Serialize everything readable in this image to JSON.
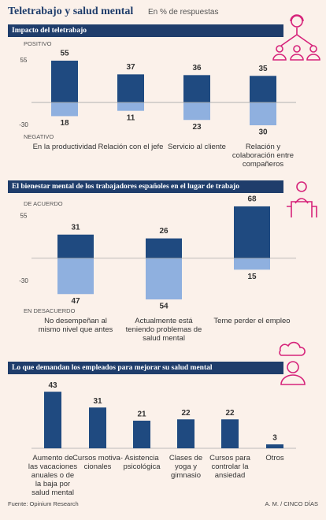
{
  "title": "Teletrabajo y salud mental",
  "subtitle": "En % de respuestas",
  "source": "Fuente: Opinium Research",
  "credit": "A. M. / CINCO DÍAS",
  "chart_data": [
    {
      "type": "bar",
      "title": "Impacto del teletrabajo",
      "categories": [
        "En la productividad",
        "Relación con el jefe",
        "Servicio al cliente",
        "Relación y colaboración entre compañeros"
      ],
      "series": [
        {
          "name": "POSITIVO",
          "color": "#1f4a80",
          "values": [
            55,
            37,
            36,
            35
          ]
        },
        {
          "name": "NEGATIVO",
          "color": "#8fb0df",
          "values": [
            -18,
            -11,
            -23,
            -30
          ],
          "value_labels": [
            "18",
            "11",
            "23",
            "30"
          ]
        }
      ],
      "ylim": [
        -30,
        55
      ],
      "yticks": [
        -30,
        55
      ]
    },
    {
      "type": "bar",
      "title": "El bienestar mental de los trabajadores españoles en el lugar de trabajo",
      "categories": [
        "No desempeñan al mismo nivel que antes",
        "Actualmente está teniendo problemas de salud mental",
        "Teme perder el empleo"
      ],
      "series": [
        {
          "name": "DE ACUERDO",
          "color": "#1f4a80",
          "values": [
            31,
            26,
            68
          ]
        },
        {
          "name": "EN DESACUERDO",
          "color": "#8fb0df",
          "values": [
            -47,
            -54,
            -15
          ],
          "value_labels": [
            "47",
            "54",
            "15"
          ]
        }
      ],
      "ylim": [
        -55,
        70
      ],
      "yticks": [
        -30,
        55
      ]
    },
    {
      "type": "bar",
      "title": "Lo que demandan los empleados para mejorar su salud mental",
      "categories": [
        "Aumento de las vacaciones anuales o de la baja por salud mental",
        "Cursos motiva-cionales",
        "Asistencia psicológica",
        "Clases de yoga y gimnasio",
        "Cursos para controlar la ansiedad",
        "Otros"
      ],
      "values": [
        43,
        31,
        21,
        22,
        22,
        3
      ],
      "color": "#1f4a80"
    }
  ]
}
